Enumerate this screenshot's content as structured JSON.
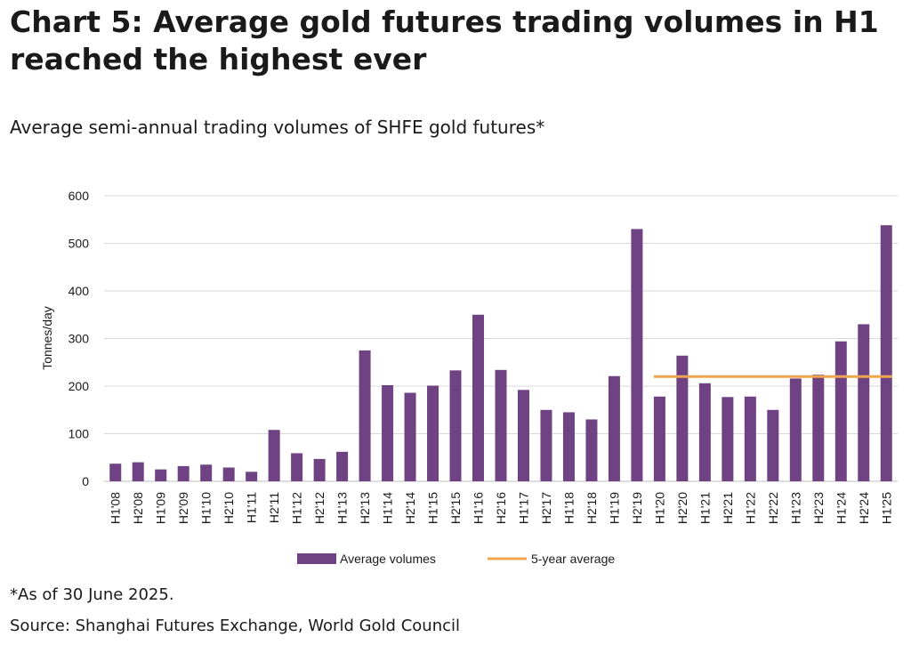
{
  "header": {
    "title": "Chart 5: Average gold futures trading volumes in H1 reached the highest ever",
    "subtitle": "Average semi-annual trading volumes of SHFE gold futures*"
  },
  "footer": {
    "note": "*As of 30 June 2025.",
    "source": "Source: Shanghai Futures Exchange, World Gold Council"
  },
  "colors": {
    "bars": "#6f4283",
    "average_line": "#f0a64e",
    "grid": "#d9d9d9"
  },
  "chart_data": {
    "type": "bar",
    "ylabel": "Tonnes/day",
    "xlabel": "",
    "ylim": [
      0,
      600
    ],
    "yticks": [
      0,
      100,
      200,
      300,
      400,
      500,
      600
    ],
    "grid": true,
    "legend_position": "bottom",
    "categories": [
      "H1'08",
      "H2'08",
      "H1'09",
      "H2'09",
      "H1'10",
      "H2'10",
      "H1'11",
      "H2'11",
      "H1'12",
      "H2'12",
      "H1'13",
      "H2'13",
      "H1'14",
      "H2'14",
      "H1'15",
      "H2'15",
      "H1'16",
      "H2'16",
      "H1'17",
      "H2'17",
      "H1'18",
      "H2'18",
      "H1'19",
      "H2'19",
      "H1'20",
      "H2'20",
      "H1'21",
      "H2'21",
      "H1'22",
      "H2'22",
      "H1'23",
      "H2'23",
      "H1'24",
      "H2'24",
      "H1'25"
    ],
    "series": [
      {
        "name": "Average volumes",
        "type": "bar",
        "values": [
          37,
          40,
          25,
          32,
          35,
          29,
          20,
          108,
          59,
          47,
          62,
          275,
          202,
          186,
          201,
          233,
          350,
          234,
          192,
          150,
          145,
          130,
          221,
          530,
          178,
          264,
          206,
          177,
          178,
          150,
          216,
          224,
          294,
          330,
          538
        ]
      },
      {
        "name": "5-year average",
        "type": "line",
        "start_category": "H1'20",
        "end_category": "H1'25",
        "value": 220
      }
    ]
  }
}
